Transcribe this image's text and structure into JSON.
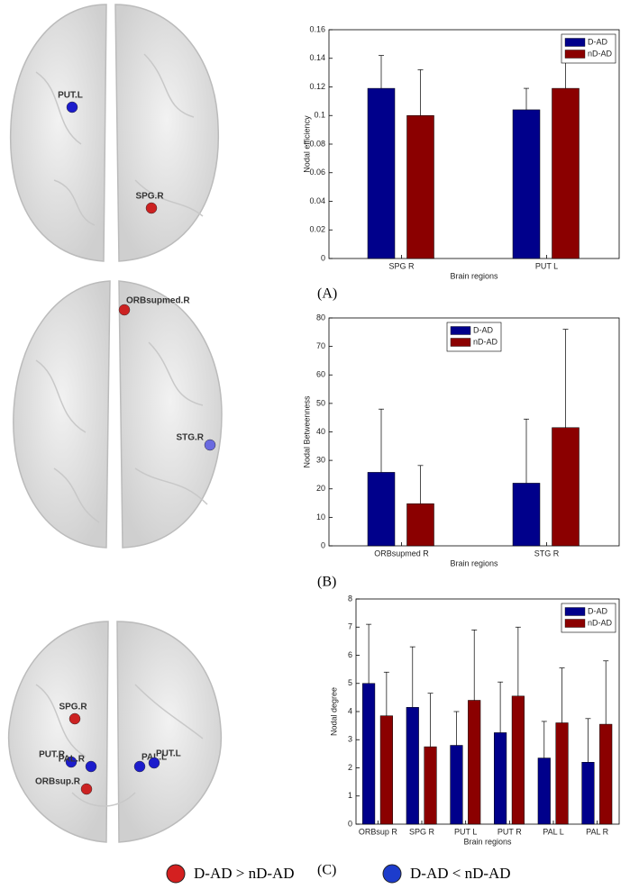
{
  "chart_data": [
    {
      "type": "bar",
      "panel_label": "(A)",
      "ylabel": "Nodal efficiency",
      "xlabel": "Brain regions",
      "categories": [
        "SPG R",
        "PUT L"
      ],
      "series": [
        {
          "name": "D-AD",
          "color": "#00008b",
          "values": [
            0.119,
            0.104
          ],
          "errors": [
            0.023,
            0.015
          ]
        },
        {
          "name": "nD-AD",
          "color": "#8b0000",
          "values": [
            0.1,
            0.119
          ],
          "errors": [
            0.032,
            0.019
          ]
        }
      ],
      "ylim": [
        0,
        0.16
      ],
      "yticks": [
        0,
        0.02,
        0.04,
        0.06,
        0.08,
        0.1,
        0.12,
        0.14,
        0.16
      ],
      "legend": "upper right"
    },
    {
      "type": "bar",
      "panel_label": "(B)",
      "ylabel": "Nodal Betweenness",
      "xlabel": "Brain regions",
      "categories": [
        "ORBsupmed R",
        "STG R"
      ],
      "series": [
        {
          "name": "D-AD",
          "color": "#00008b",
          "values": [
            25.8,
            22
          ],
          "errors": [
            22.2,
            22.5
          ]
        },
        {
          "name": "nD-AD",
          "color": "#8b0000",
          "values": [
            14.8,
            41.5
          ],
          "errors": [
            13.4,
            34.5
          ]
        }
      ],
      "ylim": [
        0,
        80
      ],
      "yticks": [
        0,
        10,
        20,
        30,
        40,
        50,
        60,
        70,
        80
      ],
      "legend": "upper center"
    },
    {
      "type": "bar",
      "panel_label": "(C)",
      "ylabel": "Nodal degree",
      "xlabel": "Brain regions",
      "categories": [
        "ORBsup R",
        "SPG R",
        "PUT L",
        "PUT R",
        "PAL L",
        "PAL R"
      ],
      "series": [
        {
          "name": "D-AD",
          "color": "#00008b",
          "values": [
            5.0,
            4.15,
            2.8,
            3.25,
            2.35,
            2.2
          ],
          "errors": [
            2.1,
            2.15,
            1.2,
            1.8,
            1.3,
            1.55
          ]
        },
        {
          "name": "nD-AD",
          "color": "#8b0000",
          "values": [
            3.85,
            2.75,
            4.4,
            4.55,
            3.6,
            3.55
          ],
          "errors": [
            1.55,
            1.9,
            2.5,
            2.45,
            1.95,
            2.25
          ]
        }
      ],
      "ylim": [
        0,
        8
      ],
      "yticks": [
        0,
        1,
        2,
        3,
        4,
        5,
        6,
        7,
        8
      ],
      "legend": "upper right"
    }
  ],
  "brains": [
    {
      "nodes": [
        {
          "label": "PUT.L",
          "color": "#1c1ccc"
        },
        {
          "label": "SPG.R",
          "color": "#cc2222"
        }
      ]
    },
    {
      "nodes": [
        {
          "label": "ORBsupmed.R",
          "color": "#cc2222"
        },
        {
          "label": "STG.R",
          "color": "#6a6ae0"
        }
      ]
    },
    {
      "nodes": [
        {
          "label": "SPG.R",
          "color": "#cc2222"
        },
        {
          "label": "PUT.R",
          "color": "#1c1ccc"
        },
        {
          "label": "PAL.R",
          "color": "#1c1ccc"
        },
        {
          "label": "PAL.L",
          "color": "#1c1ccc"
        },
        {
          "label": "PUT.L",
          "color": "#1c1ccc"
        },
        {
          "label": "ORBsup.R",
          "color": "#cc2222"
        }
      ]
    }
  ],
  "legend": [
    {
      "label": "D-AD > nD-AD",
      "color": "#d42020"
    },
    {
      "label": "D-AD < nD-AD",
      "color": "#1c3ccc"
    }
  ]
}
